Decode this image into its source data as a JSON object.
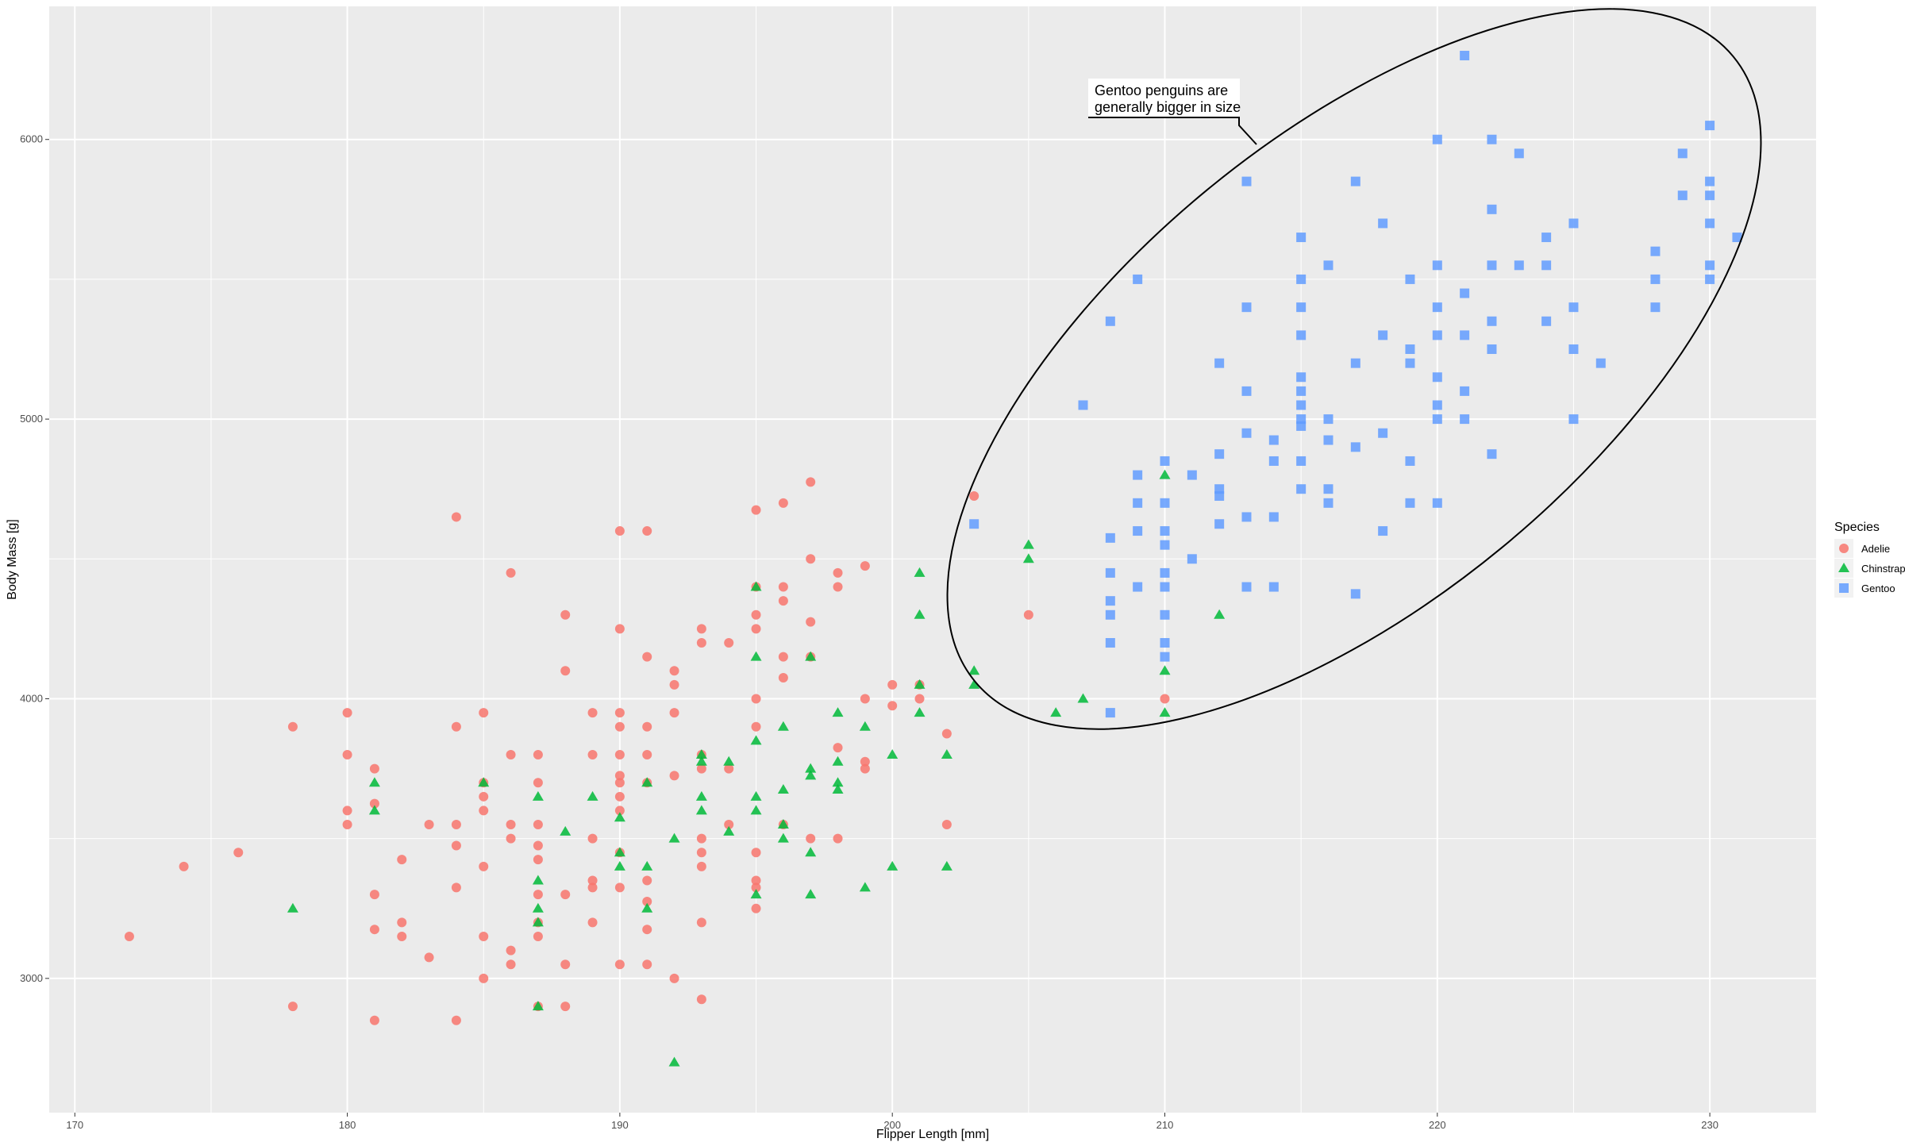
{
  "chart_data": {
    "type": "scatter",
    "title": "",
    "xlabel": "Flipper Length [mm]",
    "ylabel": "Body Mass [g]",
    "xlim": [
      169.06,
      233.9
    ],
    "ylim": [
      2520,
      6476
    ],
    "xticks": [
      170,
      180,
      190,
      200,
      210,
      220,
      230
    ],
    "yticks": [
      3000,
      4000,
      5000,
      6000
    ],
    "grid": true,
    "legend": {
      "title": "Species",
      "placement": "right"
    },
    "annotation": {
      "text_lines": [
        "Gentoo penguins are",
        "generally bigger in size"
      ],
      "shape": "ellipse around Gentoo cluster"
    },
    "series": [
      {
        "name": "Adelie",
        "marker": "circle",
        "color": "#F8766D",
        "points": [
          [
            172,
            3150
          ],
          [
            174,
            3400
          ],
          [
            176,
            3450
          ],
          [
            178,
            3900
          ],
          [
            178,
            2900
          ],
          [
            180,
            3950
          ],
          [
            180,
            3800
          ],
          [
            180,
            3600
          ],
          [
            180,
            3550
          ],
          [
            181,
            3750
          ],
          [
            181,
            3625
          ],
          [
            181,
            3300
          ],
          [
            181,
            3175
          ],
          [
            181,
            2850
          ],
          [
            182,
            3425
          ],
          [
            182,
            3200
          ],
          [
            182,
            3150
          ],
          [
            183,
            3550
          ],
          [
            183,
            3075
          ],
          [
            184,
            4650
          ],
          [
            184,
            3900
          ],
          [
            184,
            3550
          ],
          [
            184,
            3475
          ],
          [
            184,
            3325
          ],
          [
            184,
            2850
          ],
          [
            185,
            3950
          ],
          [
            185,
            3700
          ],
          [
            185,
            3650
          ],
          [
            185,
            3600
          ],
          [
            185,
            3400
          ],
          [
            185,
            3150
          ],
          [
            185,
            3000
          ],
          [
            186,
            4450
          ],
          [
            186,
            3800
          ],
          [
            186,
            3550
          ],
          [
            186,
            3500
          ],
          [
            186,
            3100
          ],
          [
            186,
            3050
          ],
          [
            187,
            3800
          ],
          [
            187,
            3700
          ],
          [
            187,
            3550
          ],
          [
            187,
            3475
          ],
          [
            187,
            3425
          ],
          [
            187,
            3300
          ],
          [
            187,
            3200
          ],
          [
            187,
            3150
          ],
          [
            187,
            2900
          ],
          [
            188,
            4300
          ],
          [
            188,
            4100
          ],
          [
            188,
            3300
          ],
          [
            188,
            3050
          ],
          [
            188,
            2900
          ],
          [
            189,
            3950
          ],
          [
            189,
            3800
          ],
          [
            189,
            3500
          ],
          [
            189,
            3350
          ],
          [
            189,
            3325
          ],
          [
            189,
            3200
          ],
          [
            190,
            4600
          ],
          [
            190,
            4250
          ],
          [
            190,
            3950
          ],
          [
            190,
            3900
          ],
          [
            190,
            3800
          ],
          [
            190,
            3725
          ],
          [
            190,
            3700
          ],
          [
            190,
            3650
          ],
          [
            190,
            3600
          ],
          [
            190,
            3450
          ],
          [
            190,
            3325
          ],
          [
            190,
            3050
          ],
          [
            191,
            4600
          ],
          [
            191,
            4150
          ],
          [
            191,
            3900
          ],
          [
            191,
            3800
          ],
          [
            191,
            3700
          ],
          [
            191,
            3350
          ],
          [
            191,
            3275
          ],
          [
            191,
            3175
          ],
          [
            191,
            3050
          ],
          [
            192,
            4100
          ],
          [
            192,
            4050
          ],
          [
            192,
            3950
          ],
          [
            192,
            3725
          ],
          [
            192,
            3000
          ],
          [
            193,
            4250
          ],
          [
            193,
            4200
          ],
          [
            193,
            3800
          ],
          [
            193,
            3750
          ],
          [
            193,
            3500
          ],
          [
            193,
            3450
          ],
          [
            193,
            3400
          ],
          [
            193,
            3200
          ],
          [
            193,
            2925
          ],
          [
            194,
            4200
          ],
          [
            194,
            3750
          ],
          [
            194,
            3550
          ],
          [
            195,
            4675
          ],
          [
            195,
            4400
          ],
          [
            195,
            4300
          ],
          [
            195,
            4250
          ],
          [
            195,
            4000
          ],
          [
            195,
            3900
          ],
          [
            195,
            3450
          ],
          [
            195,
            3350
          ],
          [
            195,
            3325
          ],
          [
            195,
            3250
          ],
          [
            196,
            4700
          ],
          [
            196,
            4400
          ],
          [
            196,
            4350
          ],
          [
            196,
            4150
          ],
          [
            196,
            4075
          ],
          [
            196,
            3550
          ],
          [
            197,
            4775
          ],
          [
            197,
            4500
          ],
          [
            197,
            4275
          ],
          [
            197,
            4150
          ],
          [
            197,
            3500
          ],
          [
            198,
            4450
          ],
          [
            198,
            4400
          ],
          [
            198,
            3825
          ],
          [
            198,
            3500
          ],
          [
            199,
            4475
          ],
          [
            199,
            4000
          ],
          [
            199,
            3775
          ],
          [
            199,
            3750
          ],
          [
            200,
            4050
          ],
          [
            200,
            3975
          ],
          [
            201,
            4050
          ],
          [
            201,
            4000
          ],
          [
            202,
            3875
          ],
          [
            202,
            3550
          ],
          [
            203,
            4725
          ],
          [
            205,
            4300
          ],
          [
            210,
            4000
          ]
        ]
      },
      {
        "name": "Chinstrap",
        "marker": "triangle",
        "color": "#00BA38",
        "points": [
          [
            178,
            3250
          ],
          [
            181,
            3700
          ],
          [
            181,
            3600
          ],
          [
            185,
            3700
          ],
          [
            187,
            3650
          ],
          [
            187,
            3350
          ],
          [
            187,
            3250
          ],
          [
            187,
            3200
          ],
          [
            187,
            2900
          ],
          [
            188,
            3525
          ],
          [
            189,
            3650
          ],
          [
            190,
            3575
          ],
          [
            190,
            3450
          ],
          [
            190,
            3400
          ],
          [
            191,
            3700
          ],
          [
            191,
            3400
          ],
          [
            191,
            3250
          ],
          [
            192,
            3500
          ],
          [
            192,
            2700
          ],
          [
            193,
            3800
          ],
          [
            193,
            3775
          ],
          [
            193,
            3650
          ],
          [
            193,
            3600
          ],
          [
            194,
            3775
          ],
          [
            194,
            3525
          ],
          [
            195,
            4400
          ],
          [
            195,
            4150
          ],
          [
            195,
            3850
          ],
          [
            195,
            3650
          ],
          [
            195,
            3600
          ],
          [
            195,
            3300
          ],
          [
            196,
            3900
          ],
          [
            196,
            3675
          ],
          [
            196,
            3550
          ],
          [
            196,
            3500
          ],
          [
            197,
            4150
          ],
          [
            197,
            3750
          ],
          [
            197,
            3725
          ],
          [
            197,
            3450
          ],
          [
            197,
            3300
          ],
          [
            198,
            3950
          ],
          [
            198,
            3775
          ],
          [
            198,
            3700
          ],
          [
            198,
            3675
          ],
          [
            199,
            3900
          ],
          [
            199,
            3325
          ],
          [
            200,
            3800
          ],
          [
            200,
            3400
          ],
          [
            201,
            4450
          ],
          [
            201,
            4300
          ],
          [
            201,
            4050
          ],
          [
            201,
            3950
          ],
          [
            202,
            3800
          ],
          [
            202,
            3400
          ],
          [
            203,
            4100
          ],
          [
            203,
            4050
          ],
          [
            205,
            4550
          ],
          [
            205,
            4500
          ],
          [
            206,
            3950
          ],
          [
            207,
            4000
          ],
          [
            210,
            4800
          ],
          [
            210,
            4100
          ],
          [
            210,
            3950
          ],
          [
            212,
            4300
          ]
        ]
      },
      {
        "name": "Gentoo",
        "marker": "square",
        "color": "#619CFF",
        "points": [
          [
            203,
            4625
          ],
          [
            207,
            5050
          ],
          [
            208,
            5350
          ],
          [
            208,
            4575
          ],
          [
            208,
            4450
          ],
          [
            208,
            4350
          ],
          [
            208,
            4300
          ],
          [
            208,
            4200
          ],
          [
            208,
            3950
          ],
          [
            209,
            5500
          ],
          [
            209,
            4800
          ],
          [
            209,
            4700
          ],
          [
            209,
            4600
          ],
          [
            209,
            4400
          ],
          [
            210,
            4850
          ],
          [
            210,
            4700
          ],
          [
            210,
            4600
          ],
          [
            210,
            4550
          ],
          [
            210,
            4450
          ],
          [
            210,
            4400
          ],
          [
            210,
            4300
          ],
          [
            210,
            4200
          ],
          [
            210,
            4150
          ],
          [
            211,
            4800
          ],
          [
            211,
            4500
          ],
          [
            212,
            5200
          ],
          [
            212,
            4875
          ],
          [
            212,
            4750
          ],
          [
            212,
            4725
          ],
          [
            212,
            4625
          ],
          [
            213,
            5850
          ],
          [
            213,
            5400
          ],
          [
            213,
            5100
          ],
          [
            213,
            4950
          ],
          [
            213,
            4650
          ],
          [
            213,
            4400
          ],
          [
            214,
            4925
          ],
          [
            214,
            4850
          ],
          [
            214,
            4650
          ],
          [
            214,
            4400
          ],
          [
            215,
            5650
          ],
          [
            215,
            5500
          ],
          [
            215,
            5400
          ],
          [
            215,
            5300
          ],
          [
            215,
            5150
          ],
          [
            215,
            5100
          ],
          [
            215,
            5050
          ],
          [
            215,
            5000
          ],
          [
            215,
            4975
          ],
          [
            215,
            4850
          ],
          [
            215,
            4750
          ],
          [
            216,
            5550
          ],
          [
            216,
            5000
          ],
          [
            216,
            4925
          ],
          [
            216,
            4750
          ],
          [
            216,
            4700
          ],
          [
            217,
            5850
          ],
          [
            217,
            5200
          ],
          [
            217,
            4900
          ],
          [
            217,
            4375
          ],
          [
            218,
            5700
          ],
          [
            218,
            5300
          ],
          [
            218,
            4950
          ],
          [
            218,
            4600
          ],
          [
            219,
            5500
          ],
          [
            219,
            5250
          ],
          [
            219,
            5200
          ],
          [
            219,
            4850
          ],
          [
            219,
            4700
          ],
          [
            220,
            6000
          ],
          [
            220,
            5550
          ],
          [
            220,
            5400
          ],
          [
            220,
            5300
          ],
          [
            220,
            5150
          ],
          [
            220,
            5050
          ],
          [
            220,
            5000
          ],
          [
            220,
            4700
          ],
          [
            221,
            6300
          ],
          [
            221,
            5450
          ],
          [
            221,
            5300
          ],
          [
            221,
            5100
          ],
          [
            221,
            5000
          ],
          [
            222,
            6000
          ],
          [
            222,
            5750
          ],
          [
            222,
            5550
          ],
          [
            222,
            5350
          ],
          [
            222,
            5250
          ],
          [
            222,
            4875
          ],
          [
            223,
            5950
          ],
          [
            223,
            5550
          ],
          [
            224,
            5650
          ],
          [
            224,
            5550
          ],
          [
            224,
            5350
          ],
          [
            225,
            5700
          ],
          [
            225,
            5400
          ],
          [
            225,
            5250
          ],
          [
            225,
            5000
          ],
          [
            226,
            5200
          ],
          [
            228,
            5600
          ],
          [
            228,
            5500
          ],
          [
            228,
            5400
          ],
          [
            229,
            5950
          ],
          [
            229,
            5800
          ],
          [
            230,
            6050
          ],
          [
            230,
            5850
          ],
          [
            230,
            5800
          ],
          [
            230,
            5700
          ],
          [
            230,
            5550
          ],
          [
            230,
            5500
          ],
          [
            231,
            5650
          ]
        ]
      }
    ]
  }
}
